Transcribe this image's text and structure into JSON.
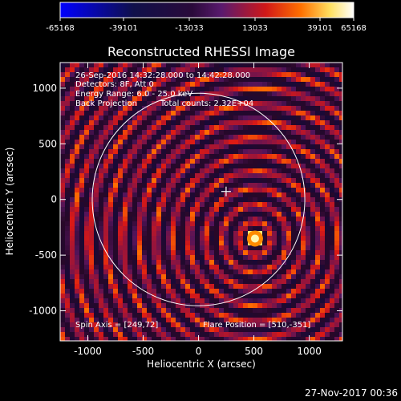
{
  "chart_data": {
    "type": "heatmap",
    "title": "Reconstructed RHESSI Image",
    "xlabel": "Heliocentric X (arcsec)",
    "ylabel": "Heliocentric Y (arcsec)",
    "xlim": [
      -1250,
      1300
    ],
    "ylim": [
      -1270,
      1230
    ],
    "xticks": [
      -1000,
      -500,
      0,
      500,
      1000
    ],
    "yticks": [
      -1000,
      -500,
      0,
      500,
      1000
    ],
    "colorbar": {
      "min": -65168,
      "max": 65168,
      "ticks": [
        "-65168",
        "-39101",
        "-13033",
        "13033",
        "39101",
        "65168"
      ],
      "colors": [
        "#0000ff",
        "#0a0a3c",
        "#000000",
        "#5a1a6e",
        "#e01010",
        "#ff8000",
        "#ffff80",
        "#ffffff"
      ]
    },
    "annotations": [
      "26-Sep-2016 14:32:28.000 to 14:42:28.000",
      "Detectors: 8F, Att 0",
      "Energy Range: 6.0 - 25.0 keV",
      "Back Projection",
      "Total counts: 2.32E+04",
      "Spin Axis = [249,72]",
      "Flare Position = [510,-351]"
    ],
    "source": {
      "x": 510,
      "y": -351
    },
    "spin_axis": {
      "x": 249,
      "y": 72
    },
    "solar_limb_radius": 960,
    "solar_limb_center": [
      0,
      0
    ],
    "fringe_spacing": 150,
    "timestamp": "27-Nov-2017 00:36"
  }
}
